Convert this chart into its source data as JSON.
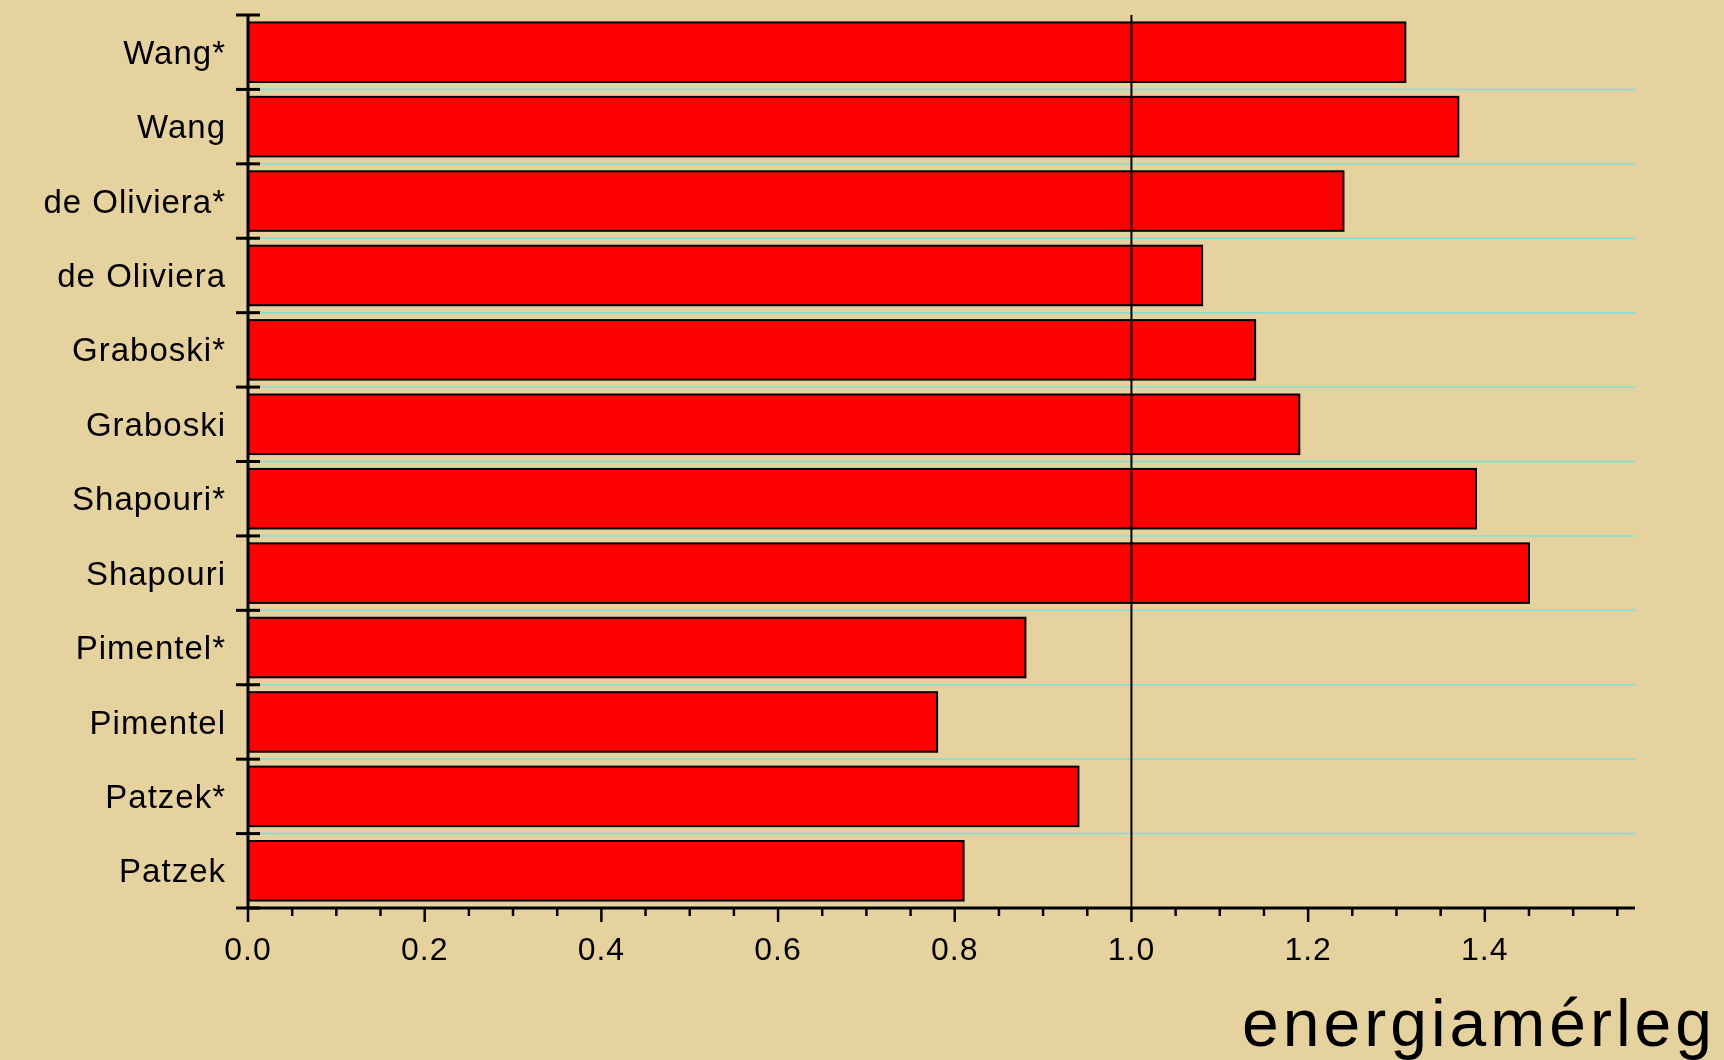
{
  "chart_data": {
    "type": "bar",
    "orientation": "horizontal",
    "xlabel": "energiamérleg",
    "categories": [
      "Wang*",
      "Wang",
      "de Oliviera*",
      "de Oliviera",
      "Graboski*",
      "Graboski",
      "Shapouri*",
      "Shapouri",
      "Pimentel*",
      "Pimentel",
      "Patzek*",
      "Patzek"
    ],
    "values": [
      1.31,
      1.37,
      1.24,
      1.08,
      1.14,
      1.19,
      1.39,
      1.45,
      0.88,
      0.78,
      0.94,
      0.81
    ],
    "color": "#ff0000",
    "xlim": [
      0,
      1.57
    ],
    "xticks": [
      {
        "value": 0,
        "label": "0.0"
      },
      {
        "value": 0.05,
        "label": null
      },
      {
        "value": 0.1,
        "label": null
      },
      {
        "value": 0.15,
        "label": null
      },
      {
        "value": 0.2,
        "label": "0.2"
      },
      {
        "value": 0.25,
        "label": null
      },
      {
        "value": 0.3,
        "label": null
      },
      {
        "value": 0.35,
        "label": null
      },
      {
        "value": 0.4,
        "label": "0.4"
      },
      {
        "value": 0.45,
        "label": null
      },
      {
        "value": 0.5,
        "label": null
      },
      {
        "value": 0.55,
        "label": null
      },
      {
        "value": 0.6,
        "label": "0.6"
      },
      {
        "value": 0.65,
        "label": null
      },
      {
        "value": 0.7,
        "label": null
      },
      {
        "value": 0.75,
        "label": null
      },
      {
        "value": 0.8,
        "label": "0.8"
      },
      {
        "value": 0.85,
        "label": null
      },
      {
        "value": 0.9,
        "label": null
      },
      {
        "value": 0.95,
        "label": null
      },
      {
        "value": 1,
        "label": "1.0"
      },
      {
        "value": 1.05,
        "label": null
      },
      {
        "value": 1.1,
        "label": null
      },
      {
        "value": 1.15,
        "label": null
      },
      {
        "value": 1.2,
        "label": "1.2"
      },
      {
        "value": 1.25,
        "label": null
      },
      {
        "value": 1.3,
        "label": null
      },
      {
        "value": 1.35,
        "label": null
      },
      {
        "value": 1.4,
        "label": "1.4"
      },
      {
        "value": 1.45,
        "label": null
      },
      {
        "value": 1.5,
        "label": null
      },
      {
        "value": 1.55,
        "label": null
      }
    ],
    "ref_lines": [
      {
        "axis": "x",
        "value": 1,
        "color": "#000000"
      }
    ],
    "grid": "y"
  }
}
